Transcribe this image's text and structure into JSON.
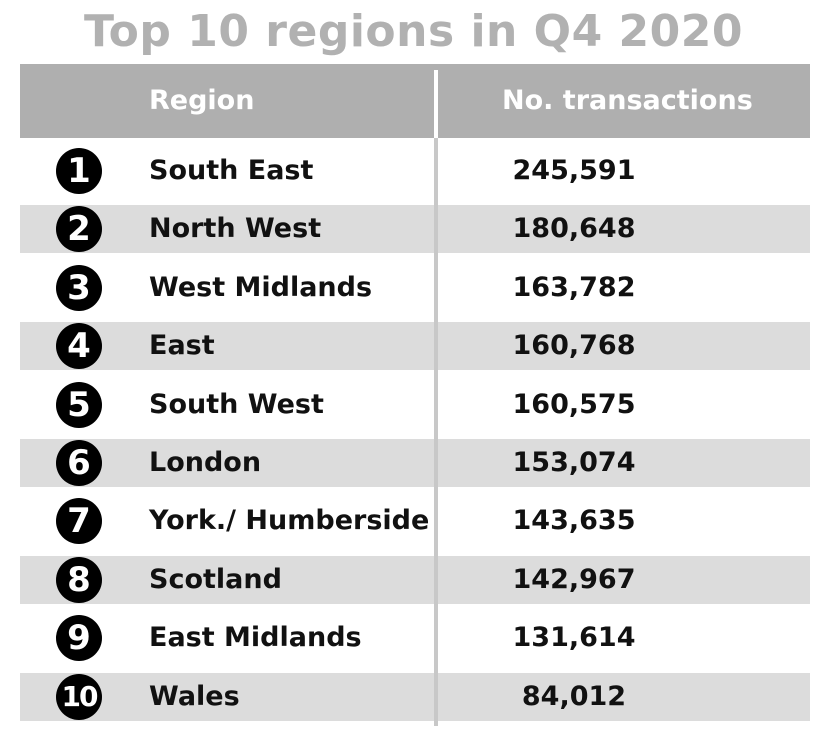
{
  "title": "Top 10 regions in Q4 2020",
  "headers": {
    "region": "Region",
    "transactions": "No. transactions"
  },
  "rows": [
    {
      "rank": "1",
      "region": "South East",
      "transactions": "245,591"
    },
    {
      "rank": "2",
      "region": "North West",
      "transactions": "180,648"
    },
    {
      "rank": "3",
      "region": "West Midlands",
      "transactions": "163,782"
    },
    {
      "rank": "4",
      "region": "East",
      "transactions": "160,768"
    },
    {
      "rank": "5",
      "region": "South West",
      "transactions": "160,575"
    },
    {
      "rank": "6",
      "region": "London",
      "transactions": "153,074"
    },
    {
      "rank": "7",
      "region": "York./ Humberside",
      "transactions": "143,635"
    },
    {
      "rank": "8",
      "region": "Scotland",
      "transactions": "142,967"
    },
    {
      "rank": "9",
      "region": "East Midlands",
      "transactions": "131,614"
    },
    {
      "rank": "10",
      "region": "Wales",
      "transactions": "84,012"
    }
  ],
  "colors": {
    "title": "#b1b1b1",
    "header_bg": "#afafaf",
    "header_text": "#ffffff",
    "shaded_row": "#dcdcdc",
    "rank_badge": "#000000"
  },
  "chart_data": {
    "type": "table",
    "title": "Top 10 regions in Q4 2020",
    "columns": [
      "Region",
      "No. transactions"
    ],
    "categories": [
      "South East",
      "North West",
      "West Midlands",
      "East",
      "South West",
      "London",
      "York./ Humberside",
      "Scotland",
      "East Midlands",
      "Wales"
    ],
    "values": [
      245591,
      180648,
      163782,
      160768,
      160575,
      153074,
      143635,
      142967,
      131614,
      84012
    ]
  }
}
